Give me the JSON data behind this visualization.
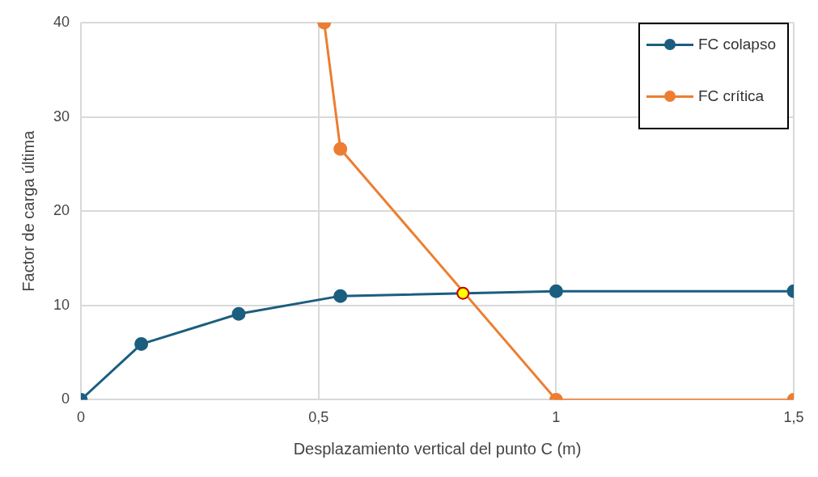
{
  "chart_data": {
    "type": "scatter",
    "xlabel": "Desplazamiento vertical del punto C (m)",
    "ylabel": "Factor de carga última",
    "xlim": [
      0,
      1.5
    ],
    "xticks": [
      0,
      {
        "value": 0.5,
        "label": "0,5"
      },
      1,
      {
        "value": 1.5,
        "label": "1,5"
      }
    ],
    "ylim": [
      0,
      40
    ],
    "yticks": [
      0,
      10,
      20,
      30,
      40
    ],
    "grid": true,
    "legend": "top right",
    "marker": "circle",
    "line_style": "solid",
    "series": [
      {
        "name": "FC colapso",
        "type": "line",
        "color": "#1b5e7f",
        "x": [
          0,
          0.127,
          0.332,
          0.546,
          1.0,
          1.5
        ],
        "values": [
          0,
          5.9,
          9.1,
          11.0,
          11.5,
          11.5
        ]
      },
      {
        "name": "FC crítica",
        "type": "line",
        "color": "#ed7d31",
        "x": [
          0.512,
          0.546,
          1.0,
          1.5
        ],
        "values": [
          40,
          26.6,
          0,
          0
        ]
      },
      {
        "type": "scatter",
        "color": "#ffff00",
        "x": [
          0.804
        ],
        "values": [
          11.3
        ]
      }
    ]
  }
}
